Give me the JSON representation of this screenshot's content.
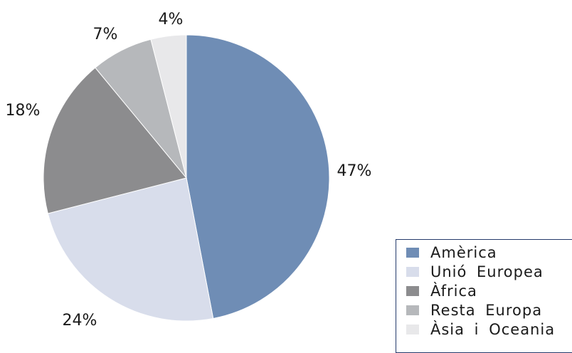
{
  "chart_data": {
    "type": "pie",
    "title": "",
    "categories": [
      "Amèrica",
      "Unió Europea",
      "Àfrica",
      "Resta Europa",
      "Àsia i Oceania"
    ],
    "values": [
      47,
      24,
      18,
      7,
      4
    ],
    "value_labels": [
      "47%",
      "24%",
      "18%",
      "7%",
      "4%"
    ],
    "colors": [
      "#6f8db5",
      "#d8ddeb",
      "#8c8c8e",
      "#b6b8bb",
      "#e8e8ea"
    ],
    "start_angle_deg": 0,
    "direction": "clockwise",
    "legend_position": "bottom-right"
  },
  "legend": {
    "items": [
      {
        "label": "Amèrica",
        "color": "#6f8db5"
      },
      {
        "label": "Unió Europea",
        "color": "#d8ddeb"
      },
      {
        "label": "Àfrica",
        "color": "#8c8c8e"
      },
      {
        "label": "Resta Europa",
        "color": "#b6b8bb"
      },
      {
        "label": "Àsia i Oceania",
        "color": "#e8e8ea"
      }
    ]
  }
}
